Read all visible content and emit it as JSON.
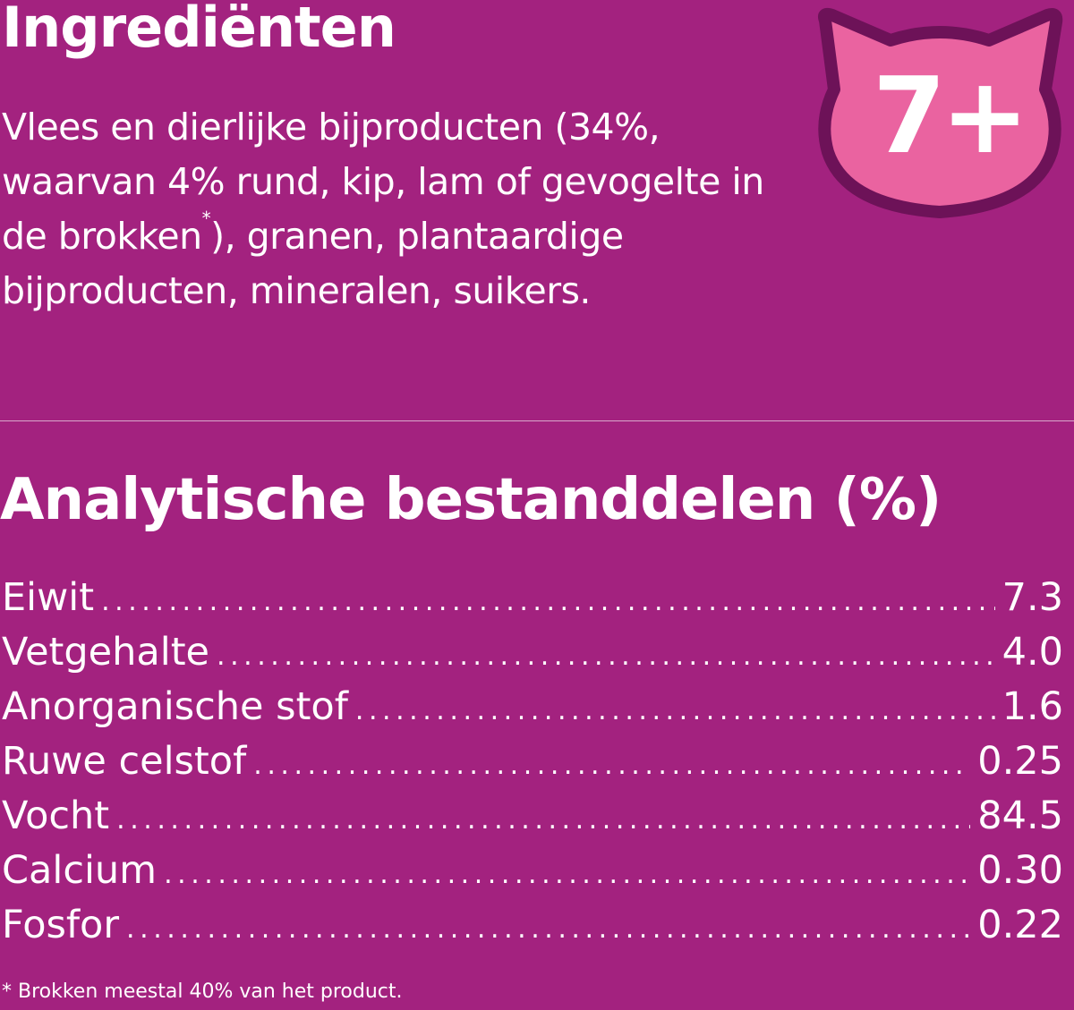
{
  "ingredients": {
    "title": "Ingrediënten",
    "text_before_sup": "Vlees en dierlijke bijproducten (34%, waarvan 4% rund, kip, lam of gevogelte in de brokken",
    "sup": "*",
    "text_after_sup": "), granen, plantaardige bijproducten, mineralen, suikers."
  },
  "badge": {
    "label": "7+",
    "icon": "cat-head-icon",
    "fill": "#ea63a0",
    "outline": "#6d1258"
  },
  "analysis": {
    "title": "Analytische bestanddelen (%)",
    "rows": [
      {
        "label": "Eiwit",
        "value": "7.3"
      },
      {
        "label": "Vetgehalte",
        "value": "4.0"
      },
      {
        "label": "Anorganische stof",
        "value": "1.6"
      },
      {
        "label": "Ruwe celstof",
        "value": "0.25"
      },
      {
        "label": "Vocht",
        "value": "84.5"
      },
      {
        "label": "Calcium",
        "value": "0.30"
      },
      {
        "label": "Fosfor",
        "value": "0.22"
      }
    ]
  },
  "footnote": "* Brokken meestal 40% van het product.",
  "colors": {
    "background": "#a3227f",
    "text": "#ffffff"
  }
}
